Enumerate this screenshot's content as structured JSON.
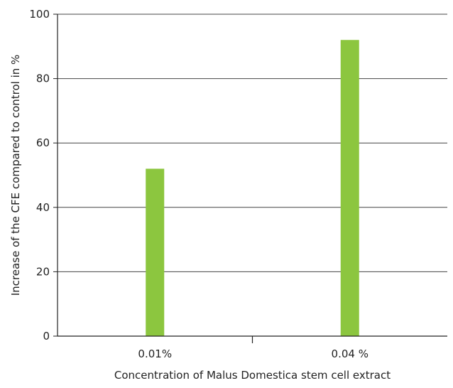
{
  "chart_data": {
    "type": "bar",
    "title": "",
    "categories": [
      "0.01%",
      "0.04 %"
    ],
    "values": [
      52,
      92
    ],
    "xlabel": "Concentration of Malus Domestica stem cell extract",
    "ylabel": "Increase of the CFE compared to control in %",
    "ylim": [
      0,
      100
    ],
    "yticks": [
      "0",
      "20",
      "40",
      "60",
      "80",
      "100"
    ],
    "grid": true,
    "legend": "none",
    "bar_color": "#8cc63f",
    "axis_color": "#222222",
    "grid_color": "#444444"
  }
}
